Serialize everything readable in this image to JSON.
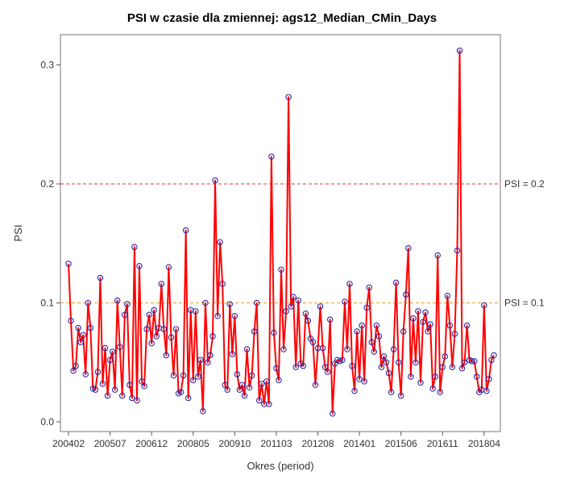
{
  "chart_data": {
    "type": "line",
    "title": "PSI w czasie dla zmiennej: ags12_Median_CMin_Days",
    "xlabel": "Okres (period)",
    "ylabel": "PSI",
    "x_start": "200402",
    "x_ticks": [
      "200402",
      "200507",
      "200612",
      "200805",
      "200910",
      "201103",
      "201208",
      "201401",
      "201506",
      "201611",
      "201804"
    ],
    "ylim": [
      0,
      0.32
    ],
    "y_ticks": [
      0.0,
      0.1,
      0.2,
      0.3
    ],
    "y_tick_labels": [
      "0.0",
      "0.1",
      "0.2",
      "0.3"
    ],
    "reference_lines": [
      {
        "label": "PSI = 0.2",
        "value": 0.2,
        "color": "#e8323c"
      },
      {
        "label": "PSI = 0.1",
        "value": 0.1,
        "color": "#e3a52a"
      }
    ],
    "series": [
      {
        "line_color": "#ff0000",
        "marker_color": "#2b2ba8",
        "values": [
          0.133,
          0.085,
          0.043,
          0.047,
          0.079,
          0.067,
          0.073,
          0.04,
          0.1,
          0.079,
          0.028,
          0.027,
          0.042,
          0.121,
          0.032,
          0.062,
          0.022,
          0.052,
          0.059,
          0.027,
          0.102,
          0.063,
          0.022,
          0.09,
          0.099,
          0.031,
          0.02,
          0.147,
          0.018,
          0.131,
          0.034,
          0.03,
          0.078,
          0.09,
          0.066,
          0.094,
          0.072,
          0.079,
          0.116,
          0.078,
          0.056,
          0.13,
          0.071,
          0.039,
          0.078,
          0.024,
          0.025,
          0.039,
          0.161,
          0.02,
          0.094,
          0.035,
          0.093,
          0.038,
          0.052,
          0.009,
          0.1,
          0.05,
          0.056,
          0.072,
          0.203,
          0.089,
          0.151,
          0.116,
          0.031,
          0.027,
          0.099,
          0.057,
          0.089,
          0.04,
          0.027,
          0.031,
          0.022,
          0.061,
          0.029,
          0.039,
          0.076,
          0.1,
          0.018,
          0.032,
          0.015,
          0.034,
          0.015,
          0.223,
          0.075,
          0.045,
          0.035,
          0.128,
          0.061,
          0.093,
          0.273,
          0.097,
          0.105,
          0.046,
          0.102,
          0.049,
          0.047,
          0.091,
          0.085,
          0.07,
          0.067,
          0.031,
          0.062,
          0.097,
          0.062,
          0.046,
          0.042,
          0.086,
          0.007,
          0.049,
          0.052,
          0.051,
          0.052,
          0.101,
          0.061,
          0.116,
          0.047,
          0.026,
          0.076,
          0.036,
          0.081,
          0.034,
          0.096,
          0.113,
          0.067,
          0.059,
          0.081,
          0.072,
          0.046,
          0.055,
          0.05,
          0.041,
          0.025,
          0.061,
          0.117,
          0.05,
          0.022,
          0.076,
          0.107,
          0.146,
          0.038,
          0.087,
          0.05,
          0.093,
          0.033,
          0.084,
          0.092,
          0.076,
          0.082,
          0.028,
          0.038,
          0.14,
          0.025,
          0.046,
          0.055,
          0.106,
          0.081,
          0.046,
          0.074,
          0.144,
          0.312,
          0.045,
          0.05,
          0.081,
          0.052,
          0.051,
          0.051,
          0.038,
          0.025,
          0.027,
          0.098,
          0.026,
          0.036,
          0.052,
          0.056
        ]
      }
    ]
  }
}
